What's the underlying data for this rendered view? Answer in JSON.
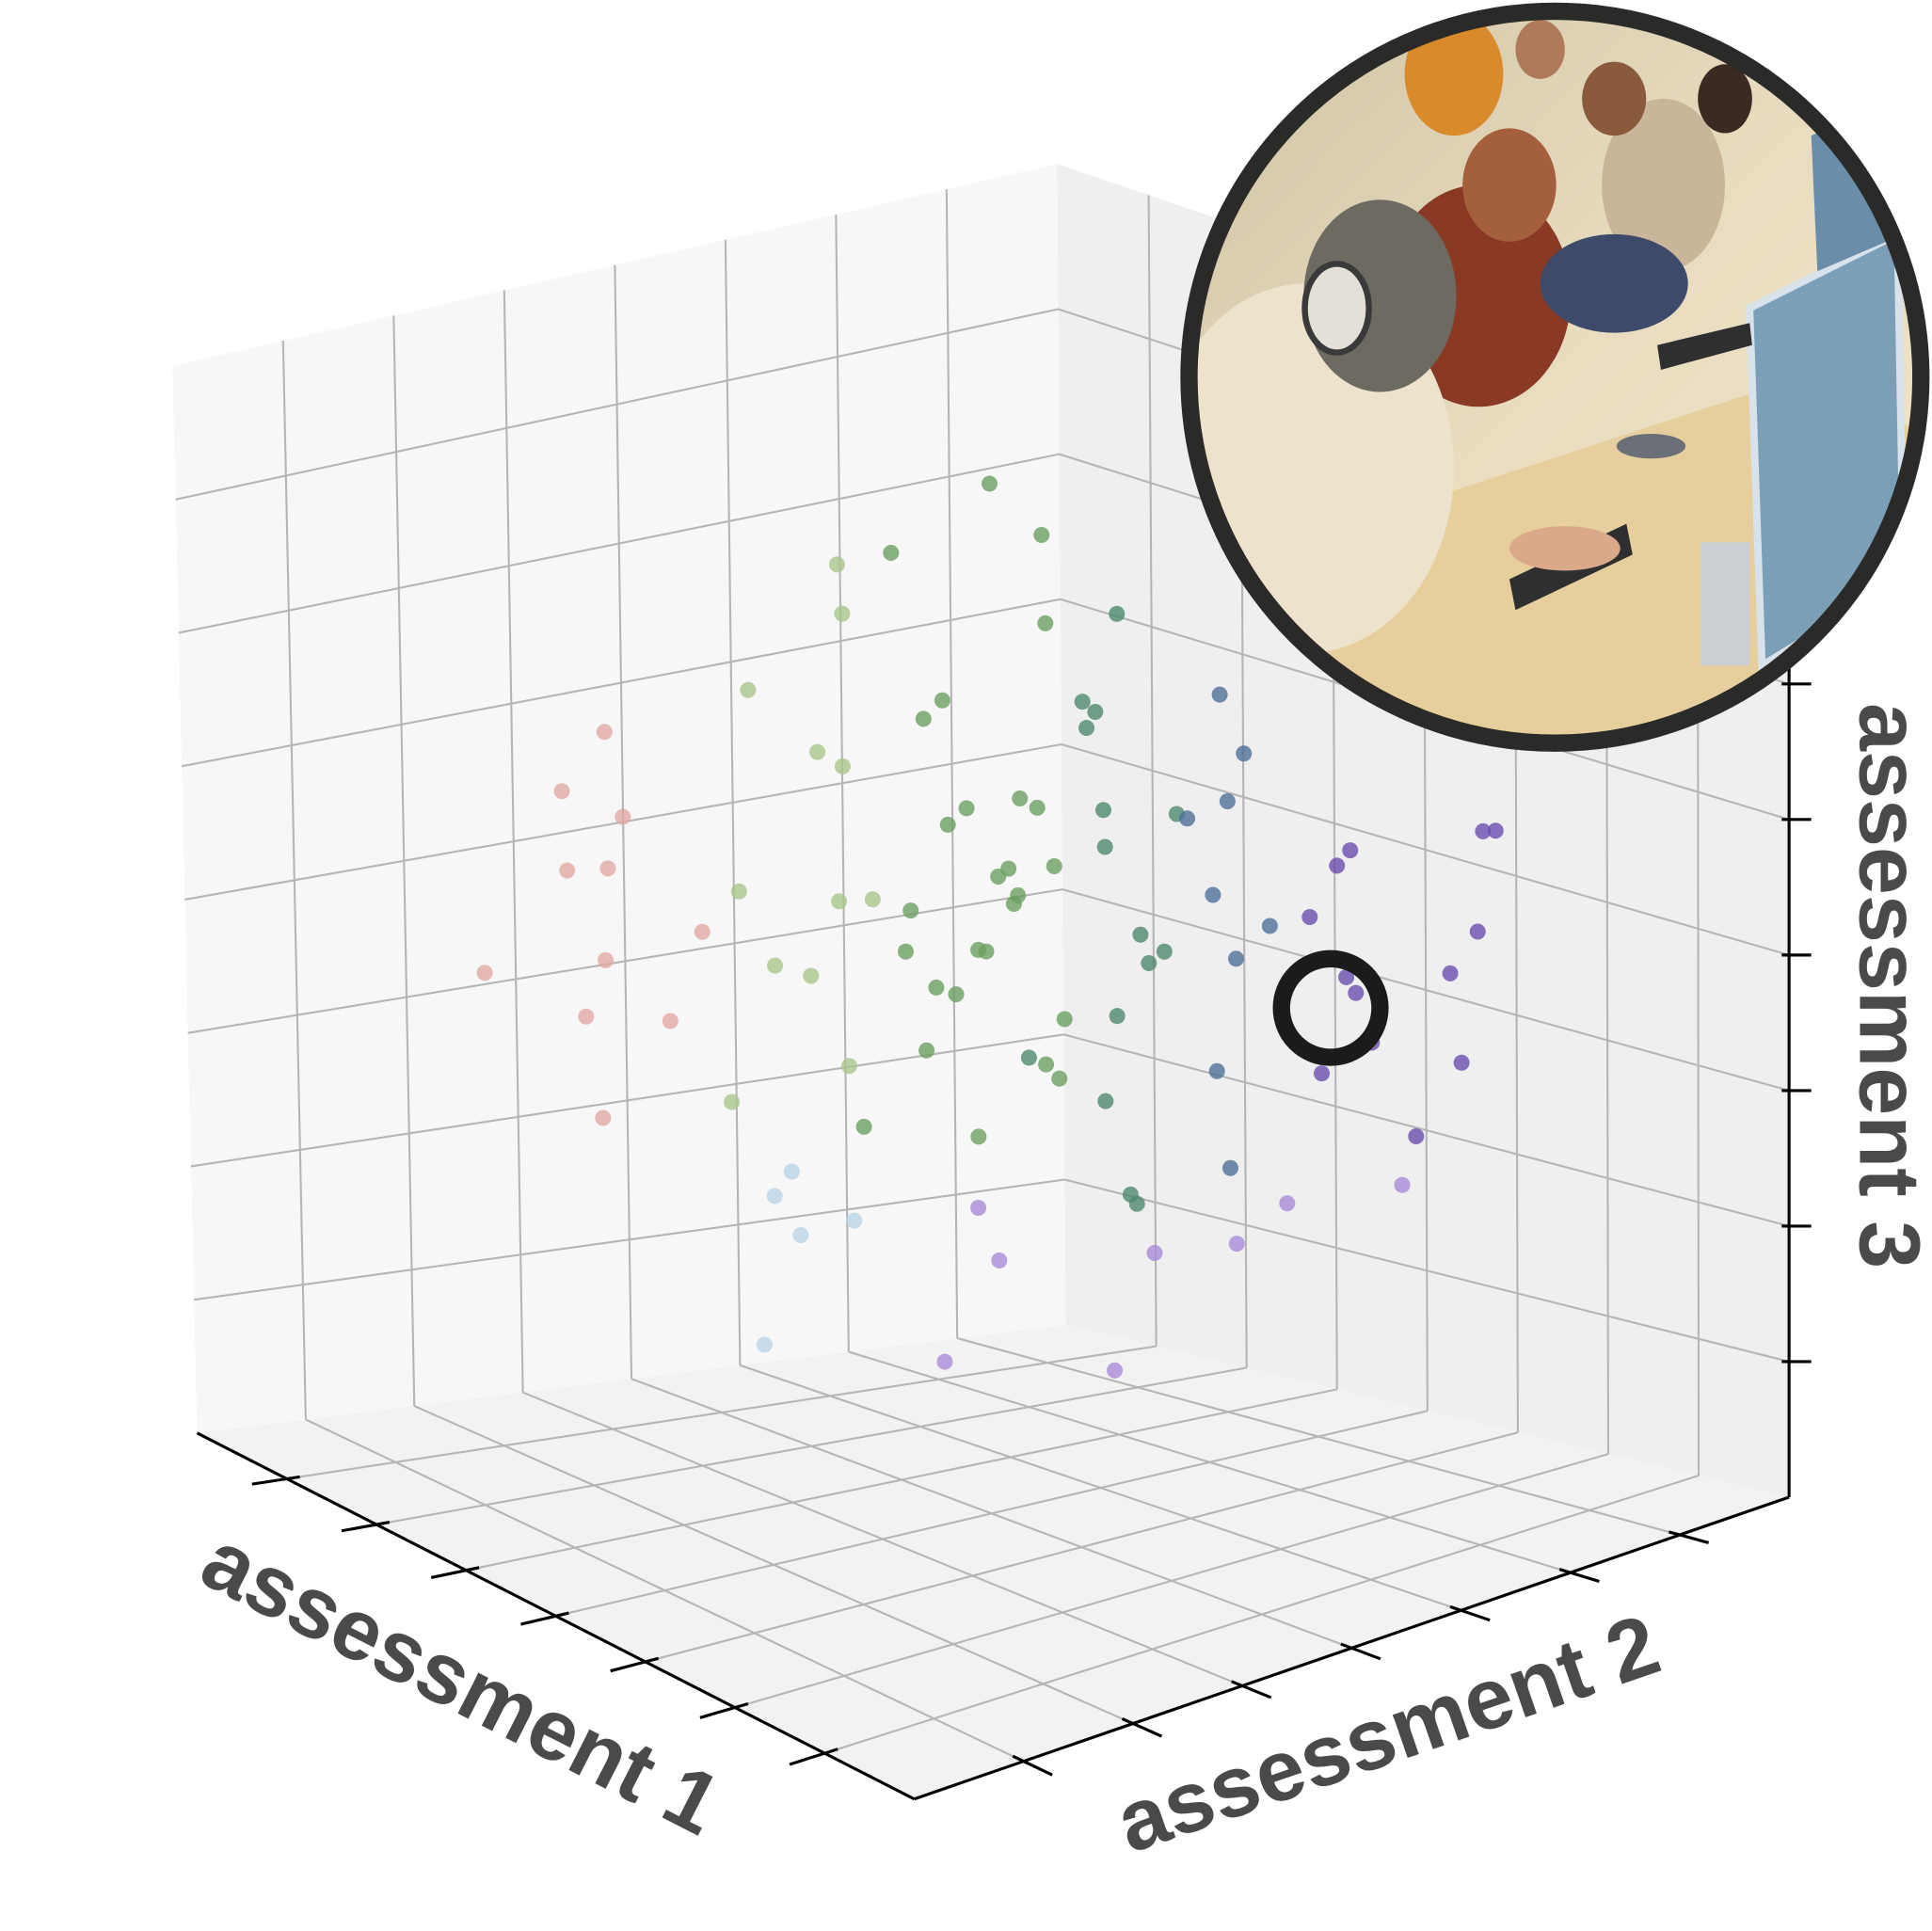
{
  "chart_data": {
    "type": "scatter3d",
    "xlabel": "assessment 1",
    "ylabel": "assessment 2",
    "zlabel": "assessment 3",
    "xlim": [
      -4,
      4
    ],
    "ylim": [
      -4,
      4
    ],
    "zlim": [
      -4,
      4
    ],
    "xticks": [
      -3,
      -2,
      -1,
      0,
      1,
      2,
      3
    ],
    "yticks": [
      -3,
      -2,
      -1,
      0,
      1,
      2,
      3
    ],
    "zticks": [
      -3,
      -2,
      -1,
      0,
      1,
      2,
      3
    ],
    "grid": true,
    "x": [
      0.1,
      -0.7,
      1.0,
      -1.4,
      0.5,
      -0.2,
      1.7,
      -2.0,
      0.8,
      -0.6,
      0.3,
      1.3,
      -1.1,
      0.0,
      2.1,
      -0.9,
      0.7,
      -1.8,
      1.5,
      -0.4,
      -2.6,
      0.9,
      2.4,
      -1.2,
      0.2,
      1.1,
      -0.1,
      -1.6,
      2.8,
      0.4,
      -0.8,
      1.9,
      -2.3,
      0.6,
      -1.0,
      1.4,
      -0.3,
      2.2,
      -1.7,
      0.0,
      1.2,
      -1.3,
      0.8,
      -2.9,
      1.6,
      -0.5,
      2.6,
      -0.2,
      0.5,
      -1.9,
      0.6,
      -0.6,
      1.0,
      -1.1,
      0.3,
      1.8,
      -2.2,
      0.9,
      -0.4,
      1.3,
      -3.1,
      0.2,
      2.0,
      -0.9,
      1.5,
      -1.5,
      0.4,
      2.9,
      -0.7,
      0.1,
      1.1,
      -0.1,
      0.7,
      -1.2,
      2.3,
      -2.5,
      0.3,
      1.7,
      -0.3,
      3.1,
      -1.4,
      0.5,
      -0.8,
      1.9,
      0.0,
      -2.7,
      1.2,
      -0.6,
      2.5,
      -1.0,
      0.8,
      -1.7,
      0.2,
      1.4,
      -0.2,
      2.7,
      -0.9,
      0.6,
      -2.4,
      1.6
    ],
    "y": [
      0.2,
      0.4,
      -0.3,
      -1.1,
      1.2,
      1.9,
      0.8,
      -0.5,
      -1.8,
      -2.4,
      -0.6,
      1.5,
      0.9,
      -0.1,
      1.2,
      -1.6,
      0.3,
      1.1,
      -1.0,
      2.6,
      -1.3,
      2.3,
      0.1,
      -0.3,
      -1.4,
      0.6,
      1.0,
      -2.2,
      1.9,
      -0.8,
      0.1,
      -0.5,
      0.6,
      1.7,
      -0.9,
      2.2,
      -1.1,
      2.5,
      -1.9,
      0.7,
      0.0,
      1.6,
      -2.6,
      -0.2,
      1.4,
      0.5,
      -0.8,
      -0.4,
      2.9,
      0.3,
      0.9,
      -0.2,
      1.0,
      -0.7,
      0.4,
      1.7,
      -2.0,
      -0.2,
      1.4,
      2.7,
      -0.9,
      -1.7,
      0.4,
      0.8,
      -0.1,
      0.2,
      1.8,
      1.1,
      -2.9,
      -0.5,
      -1.2,
      0.0,
      0.6,
      1.3,
      2.0,
      -1.6,
      2.1,
      -1.5,
      -0.6,
      0.7,
      -2.7,
      0.2,
      -1.3,
      2.9,
      1.2,
      0.9,
      0.3,
      0.6,
      -1.7,
      2.3,
      1.6,
      -0.4,
      0.9,
      -0.7,
      -1.9,
      2.4,
      0.0,
      -0.3,
      -2.6,
      3.2
    ],
    "z": [
      0.4,
      0.8,
      -0.5,
      0.3,
      -0.1,
      0.6,
      -1.3,
      1.5,
      -0.7,
      -0.2,
      1.1,
      0.2,
      -0.4,
      -1.8,
      0.5,
      -1.0,
      1.9,
      1.2,
      0.9,
      -0.6,
      0.2,
      -1.1,
      -0.3,
      2.2,
      -1.6,
      -2.0,
      1.4,
      -1.2,
      0.1,
      0.0,
      -0.9,
      1.3,
      0.7,
      0.9,
      -2.1,
      -0.4,
      0.5,
      -0.8,
      0.9,
      -0.6,
      2.0,
      2.4,
      0.6,
      -0.5,
      -1.7,
      -2.4,
      -1.0,
      1.7,
      0.3,
      -1.3,
      0.1,
      0.2,
      1.0,
      -0.3,
      -0.9,
      0.7,
      0.4,
      2.6,
      -1.4,
      -1.9,
      1.0,
      1.8,
      0.8,
      3.0,
      -2.6,
      0.0,
      1.6,
      -0.2,
      0.3,
      -2.8,
      0.2,
      0.0,
      -0.4,
      0.6,
      -1.2,
      -0.8,
      1.1,
      -0.6,
      2.9,
      0.4,
      1.3,
      0.7,
      -1.7,
      0.0,
      2.2,
      2.0,
      -1.5,
      0.3,
      0.2,
      -0.7,
      -2.2,
      -1.9,
      0.9,
      1.5,
      -2.5,
      1.0,
      -0.2,
      0.8,
      -0.3,
      0.6
    ],
    "colors": [
      "#6aa060",
      "#6aa060",
      "#6aa060",
      "#a9c58a",
      "#4e8a6e",
      "#4e8a6e",
      "#4f6f9a",
      "#a9c58a",
      "#6aa060",
      "#e2a9a4",
      "#6aa060",
      "#4f6f9a",
      "#6aa060",
      "#a98bd8",
      "#6a4fb0",
      "#a9c58a",
      "#4e8a6e",
      "#6aa060",
      "#6aa060",
      "#4f6f9a",
      "#e2a9a4",
      "#6a4fb0",
      "#4f6f9a",
      "#a9c58a",
      "#b9d4e6",
      "#a98bd8",
      "#4e8a6e",
      "#e2a9a4",
      "#6a4fb0",
      "#6aa060",
      "#6aa060",
      "#4e8a6e",
      "#a9c58a",
      "#4f6f9a",
      "#b9d4e6",
      "#6a4fb0",
      "#a9c58a",
      "#6a4fb0",
      "#e2a9a4",
      "#6aa060",
      "#4e8a6e",
      "#6aa060",
      "#a9c58a",
      "#e2a9a4",
      "#a98bd8",
      "#a98bd8",
      "#4e8a6e",
      "#6aa060",
      "#6a4fb0",
      "#a9c58a",
      "#4e8a6e",
      "#6aa060",
      "#4f6f9a",
      "#a9c58a",
      "#6aa060",
      "#6a4fb0",
      "#e2a9a4",
      "#6aa060",
      "#4e8a6e",
      "#a98bd8",
      "#e2a9a4",
      "#a9c58a",
      "#4f6f9a",
      "#6aa060",
      "#a98bd8",
      "#a9c58a",
      "#4f6f9a",
      "#6a4fb0",
      "#e2a9a4",
      "#a98bd8",
      "#6aa060",
      "#6aa060",
      "#4e8a6e",
      "#6aa060",
      "#6a4fb0",
      "#e2a9a4",
      "#4f6f9a",
      "#6aa060",
      "#6aa060",
      "#6a4fb0",
      "#e2a9a4",
      "#6aa060",
      "#b9d4e6",
      "#6a4fb0",
      "#4e8a6e",
      "#a9c58a",
      "#4e8a6e",
      "#6aa060",
      "#4e8a6e",
      "#4e8a6e",
      "#a98bd8",
      "#b9d4e6",
      "#4e8a6e",
      "#6aa060",
      "#b9d4e6",
      "#6a4fb0",
      "#6aa060",
      "#6aa060",
      "#e2a9a4",
      "#6a4fb0"
    ]
  }
}
